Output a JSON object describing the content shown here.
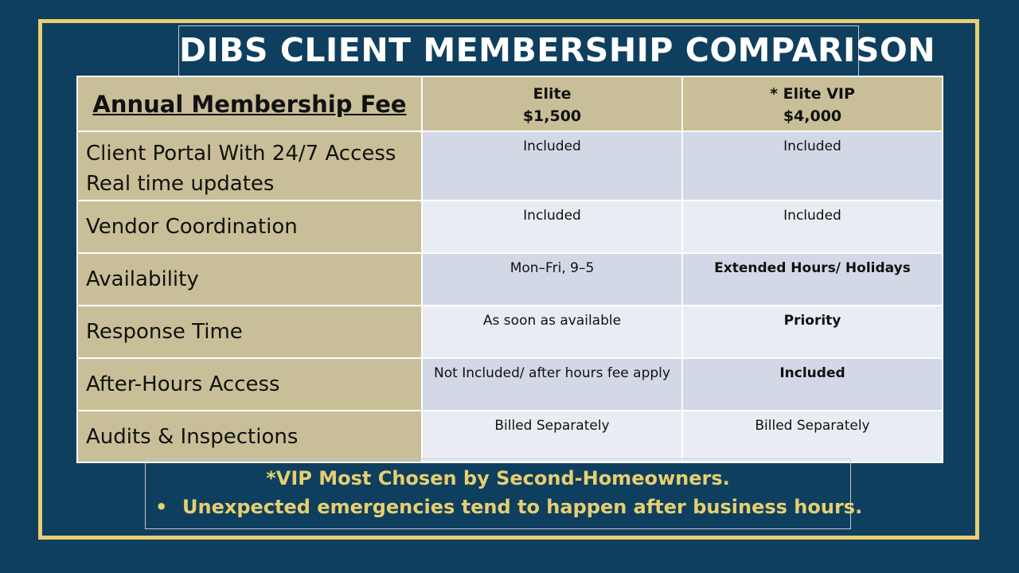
{
  "title": "DIBS CLIENT MEMBERSHIP COMPARISON",
  "header": {
    "feature_label": "Annual Membership  Fee",
    "plans": [
      {
        "name": "Elite",
        "price": "$1,500"
      },
      {
        "name": "* Elite VIP",
        "price": "$4,000"
      }
    ]
  },
  "rows": [
    {
      "feature_lines": [
        "Client Portal With 24/7 Access",
        "Real time updates"
      ],
      "elite": "Included",
      "vip": "Included"
    },
    {
      "feature_lines": [
        "Vendor Coordination"
      ],
      "elite": "Included",
      "vip": "Included"
    },
    {
      "feature_lines": [
        "Availability"
      ],
      "elite": "Mon–Fri, 9–5",
      "vip": "Extended Hours/ Holidays"
    },
    {
      "feature_lines": [
        "Response Time"
      ],
      "elite": "As soon as available",
      "vip": "Priority"
    },
    {
      "feature_lines": [
        "After-Hours Access"
      ],
      "elite": "Not Included/ after hours fee apply",
      "vip": "Included"
    },
    {
      "feature_lines": [
        "Audits & Inspections"
      ],
      "elite": "Billed Separately",
      "vip": "Billed Separately"
    }
  ],
  "notes": {
    "line1": "*VIP Most Chosen by Second-Homeowners.",
    "bullet": "•",
    "line2": "Unexpected emergencies tend to happen after business hours."
  },
  "colors": {
    "background": "#0f3f5f",
    "gold_accent": "#e6cf72",
    "tan_cell": "#c8bf98",
    "row_dark": "#d2d8e6",
    "row_light": "#e9ecf3"
  }
}
